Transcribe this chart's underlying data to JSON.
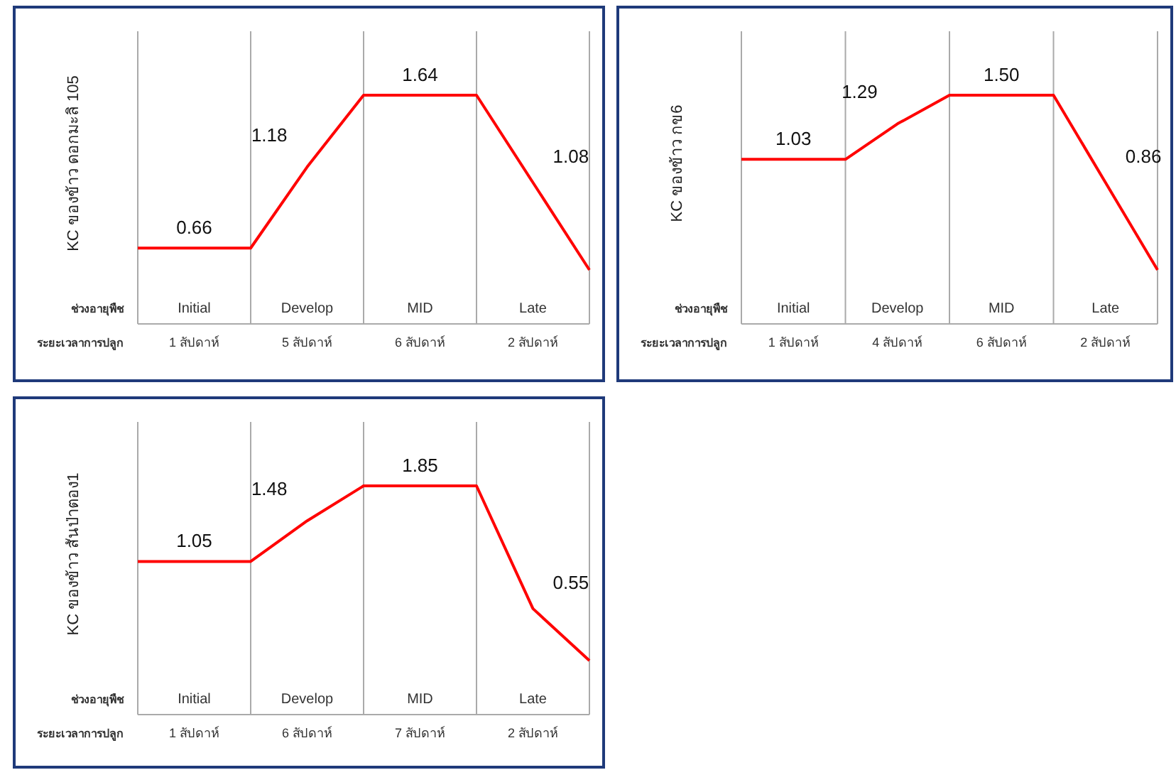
{
  "chart_data": [
    {
      "type": "line",
      "ylabel": "KC ของข้าว ดอกมะลิ 105",
      "grid": "x",
      "line_style": "solid",
      "marker": "none",
      "categories": [
        null,
        "Initial",
        null,
        "Develop",
        null,
        "MID",
        null,
        "Late",
        null
      ],
      "annotations": [
        "ช่วงอายุพืช",
        "ระยะเวลาการปลูก",
        "1 สัปดาห์",
        "5 สัปดาห์",
        "6 สัปดาห์",
        "2 สัปดาห์"
      ],
      "series": [
        {
          "color": "#ff0000",
          "values": [
            0.66,
            0.66,
            0.66,
            1.18,
            1.64,
            1.64,
            1.64,
            1.08,
            0.52
          ],
          "value_labels": [
            null,
            "0.66",
            null,
            "1.18",
            null,
            "1.64",
            null,
            "1.08",
            null
          ]
        }
      ]
    },
    {
      "type": "line",
      "ylabel": "KC ของข้าว กข6",
      "grid": "x",
      "line_style": "solid",
      "marker": "none",
      "categories": [
        null,
        "Initial",
        null,
        "Develop",
        null,
        "MID",
        null,
        "Late",
        null
      ],
      "annotations": [
        "ช่วงอายุพืช",
        "ระยะเวลาการปลูก",
        "1 สัปดาห์",
        "4 สัปดาห์",
        "6 สัปดาห์",
        "2 สัปดาห์"
      ],
      "series": [
        {
          "color": "#ff0000",
          "values": [
            1.03,
            1.03,
            1.03,
            1.29,
            1.5,
            1.5,
            1.5,
            0.86,
            0.22
          ],
          "value_labels": [
            null,
            "1.03",
            null,
            "1.29",
            null,
            "1.50",
            null,
            "0.86",
            null
          ]
        }
      ]
    },
    {
      "type": "line",
      "ylabel": "KC ของข้าว สันป่าตอง1",
      "grid": "x",
      "line_style": "solid",
      "marker": "none",
      "categories": [
        null,
        "Initial",
        null,
        "Develop",
        null,
        "MID",
        null,
        "Late",
        null
      ],
      "annotations": [
        "ช่วงอายุพืช",
        "ระยะเวลาการปลูก",
        "1 สัปดาห์",
        "6 สัปดาห์",
        "7 สัปดาห์",
        "2 สัปดาห์"
      ],
      "series": [
        {
          "color": "#ff0000",
          "values": [
            1.05,
            1.05,
            1.05,
            1.48,
            1.85,
            1.85,
            1.85,
            0.55,
            0.0
          ],
          "value_labels": [
            null,
            "1.05",
            null,
            "1.48",
            null,
            "1.85",
            null,
            "0.55",
            null
          ]
        }
      ]
    }
  ]
}
